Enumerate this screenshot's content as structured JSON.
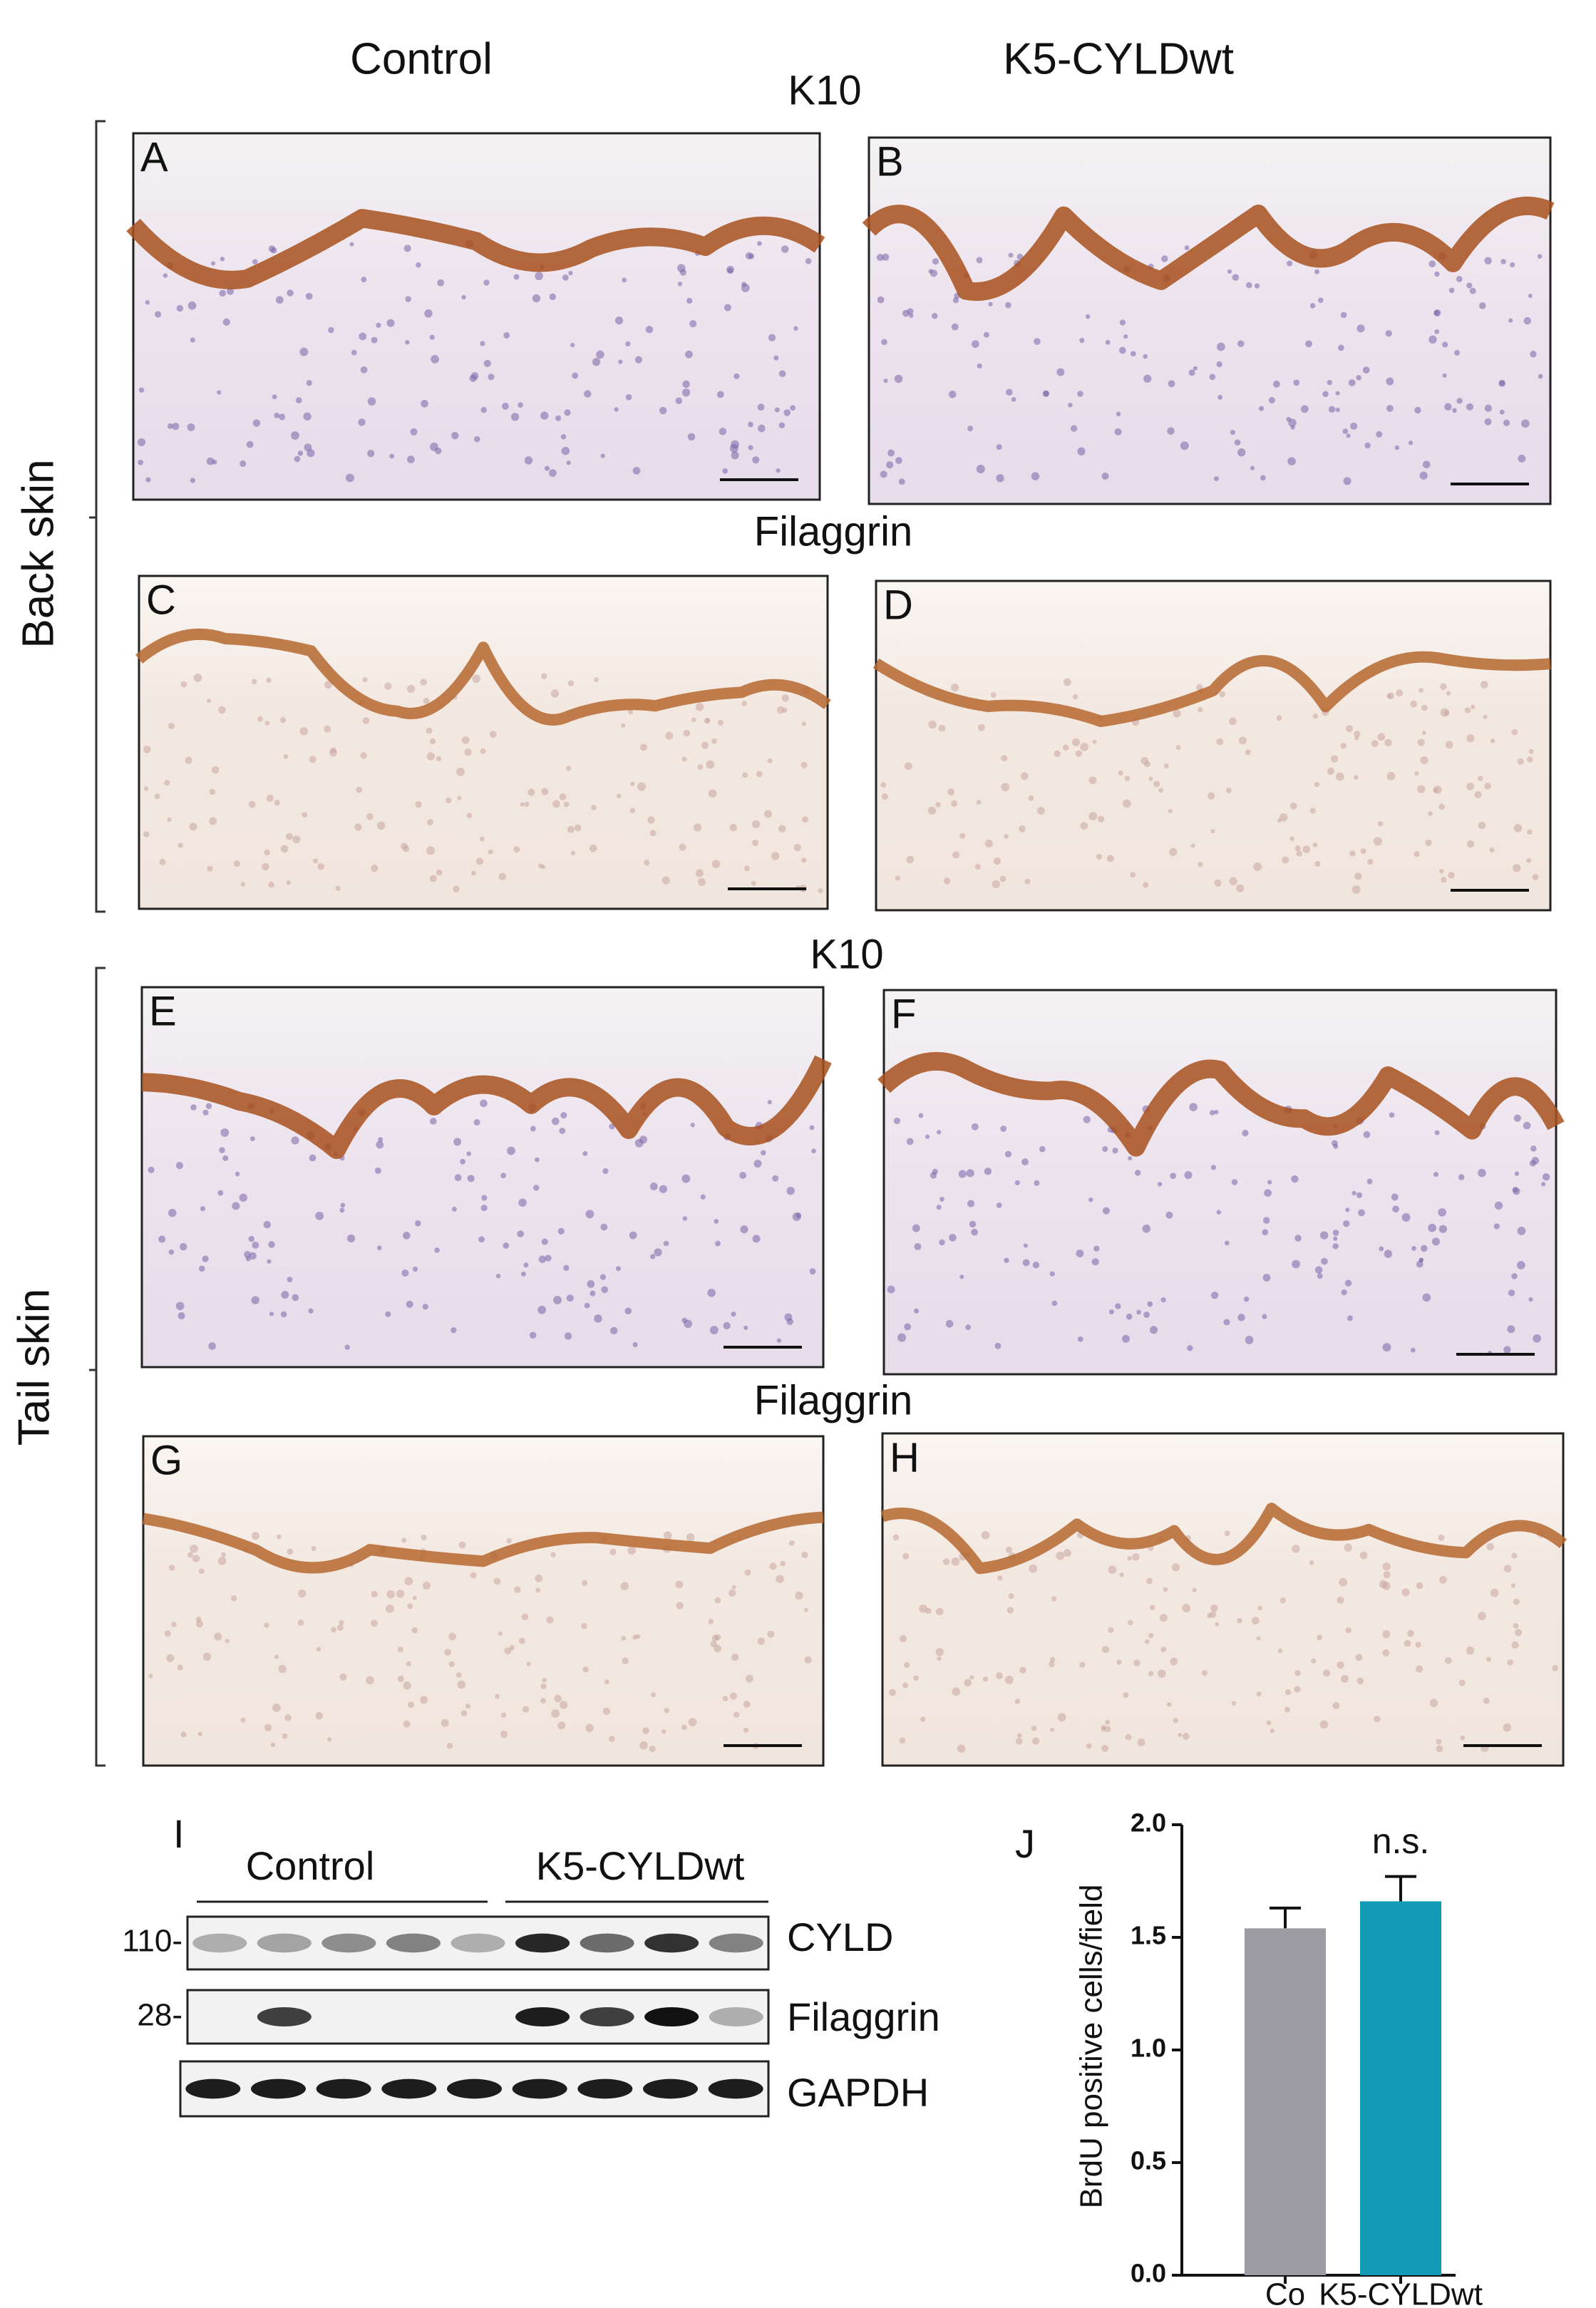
{
  "column_labels": [
    "Control",
    "K5-CYLDwt"
  ],
  "row_labels": [
    "Back skin",
    "Tail skin"
  ],
  "stain_labels": [
    "K10",
    "Filaggrin",
    "K10",
    "Filaggrin"
  ],
  "panels": [
    "A",
    "B",
    "C",
    "D",
    "E",
    "F",
    "G",
    "H"
  ],
  "blot": {
    "panel_label": "I",
    "group_labels": [
      "Control",
      "K5-CYLDwt"
    ],
    "rows": [
      {
        "marker": "110-",
        "name": "CYLD"
      },
      {
        "marker": "28-",
        "name": "Filaggrin"
      },
      {
        "name": "GAPDH"
      }
    ]
  },
  "chart_data": {
    "type": "bar",
    "panel_label": "J",
    "y_label": "BrdU positive cells/field",
    "categories": [
      "Co",
      "K5-CYLDwt"
    ],
    "values": [
      1.54,
      1.66
    ],
    "errors": [
      0.09,
      0.11
    ],
    "colors": [
      "#9d9ca3",
      "#139bb5"
    ],
    "annotation": "n.s.",
    "ylim": [
      0,
      2.0
    ],
    "yticks": [
      {
        "value": 0,
        "label": "0.0"
      },
      0.5,
      {
        "value": 1,
        "label": "1.0"
      },
      1.5,
      {
        "value": 2,
        "label": "2.0"
      }
    ]
  }
}
